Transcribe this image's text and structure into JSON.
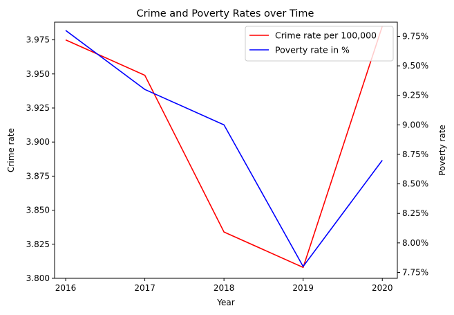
{
  "chart_data": {
    "type": "line",
    "title": "Crime and Poverty Rates over Time",
    "xlabel": "Year",
    "ylabel_left": "Crime rate",
    "ylabel_right": "Poverty rate",
    "x": [
      2016,
      2017,
      2018,
      2019,
      2020
    ],
    "x_tick_labels": [
      "2016",
      "2017",
      "2018",
      "2019",
      "2020"
    ],
    "y_left": {
      "lim": [
        3.8,
        3.988
      ],
      "ticks": [
        3.8,
        3.825,
        3.85,
        3.875,
        3.9,
        3.925,
        3.95,
        3.975
      ],
      "tick_labels": [
        "3.800",
        "3.825",
        "3.850",
        "3.875",
        "3.900",
        "3.925",
        "3.950",
        "3.975"
      ]
    },
    "y_right": {
      "lim": [
        7.7,
        9.87
      ],
      "ticks": [
        7.75,
        8.0,
        8.25,
        8.5,
        8.75,
        9.0,
        9.25,
        9.5,
        9.75
      ],
      "tick_labels": [
        "7.75%",
        "8.00%",
        "8.25%",
        "8.50%",
        "8.75%",
        "9.00%",
        "9.25%",
        "9.50%",
        "9.75%"
      ]
    },
    "series": [
      {
        "name": "Crime rate per 100,000",
        "axis": "left",
        "color": "#ff0000",
        "values": [
          3.975,
          3.949,
          3.834,
          3.808,
          3.985
        ]
      },
      {
        "name": "Poverty rate in %",
        "axis": "right",
        "color": "#0000ff",
        "values": [
          9.8,
          9.3,
          9.0,
          7.8,
          8.7
        ]
      }
    ],
    "legend_position": "upper right",
    "grid": false
  }
}
